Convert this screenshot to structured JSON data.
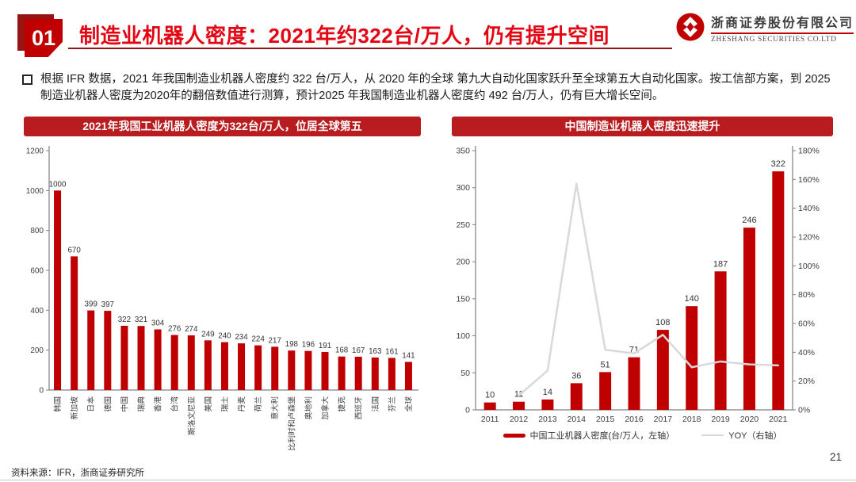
{
  "header": {
    "badge_number": "01",
    "title": "制造业机器人密度：2021年约322台/万人，仍有提升空间",
    "logo": {
      "company_cn": "浙商证券股份有限公司",
      "company_en": "ZHESHANG SECURITIES CO.LTD"
    }
  },
  "body": {
    "bullet_text": "根据 IFR 数据，2021 年我国制造业机器人密度约 322 台/万人，从 2020 年的全球 第九大自动化国家跃升至全球第五大自动化国家。按工信部方案，到 2025制造业机器人密度为2020年的翻倍数值进行测算，预计2025 年我国制造业机器人密度约 492 台/万人，仍有巨大增长空间。"
  },
  "footer": {
    "source": "资料来源：IFR，浙商证券研究所",
    "page_number": "21"
  },
  "colors": {
    "accent_red": "#C00000",
    "banner_red": "#B81C1E",
    "title_red": "#E30613",
    "badge_dark_red": "#971414",
    "yoy_line_gray": "#D9D9D9",
    "axis_gray": "#808080"
  },
  "chart_data": [
    {
      "type": "bar",
      "title": "2021年我国工业机器人密度为322台/万人，位居全球第五",
      "categories": [
        "韩国",
        "新加坡",
        "日本",
        "德国",
        "中国",
        "瑞典",
        "香港",
        "台湾",
        "斯洛文尼亚",
        "美国",
        "瑞士",
        "丹麦",
        "荷兰",
        "意大利",
        "比利时和卢森堡",
        "奥地利",
        "加拿大",
        "捷克",
        "西班牙",
        "法国",
        "芬兰",
        "全球"
      ],
      "values": [
        1000,
        670,
        399,
        397,
        322,
        321,
        304,
        276,
        274,
        249,
        240,
        234,
        224,
        217,
        198,
        196,
        191,
        168,
        167,
        163,
        161,
        141
      ],
      "xlabel": "",
      "ylabel": "",
      "ylim": [
        0,
        1200
      ],
      "ytick_step": 200,
      "grid": false,
      "bar_color": "#C00000",
      "data_labels": true
    },
    {
      "type": "bar+line",
      "title": "中国制造业机器人密度迅速提升",
      "categories": [
        "2011",
        "2012",
        "2013",
        "2014",
        "2015",
        "2016",
        "2017",
        "2018",
        "2019",
        "2020",
        "2021"
      ],
      "series": [
        {
          "name": "中国工业机器人密度(台/万人，左轴）",
          "type": "bar",
          "axis": "left",
          "values": [
            10,
            11,
            14,
            36,
            51,
            71,
            108,
            140,
            187,
            246,
            322
          ]
        },
        {
          "name": "YOY（右轴）",
          "type": "line",
          "axis": "right",
          "values": [
            null,
            10,
            27.3,
            157.1,
            41.7,
            39.2,
            52.1,
            29.6,
            33.6,
            31.6,
            30.9
          ]
        }
      ],
      "left_ylim": [
        0,
        350
      ],
      "left_ytick_step": 50,
      "right_ylim": [
        0,
        180
      ],
      "right_ytick_step": 20,
      "right_tick_suffix": "%",
      "grid": false,
      "legend_position": "bottom",
      "data_labels": true
    }
  ]
}
